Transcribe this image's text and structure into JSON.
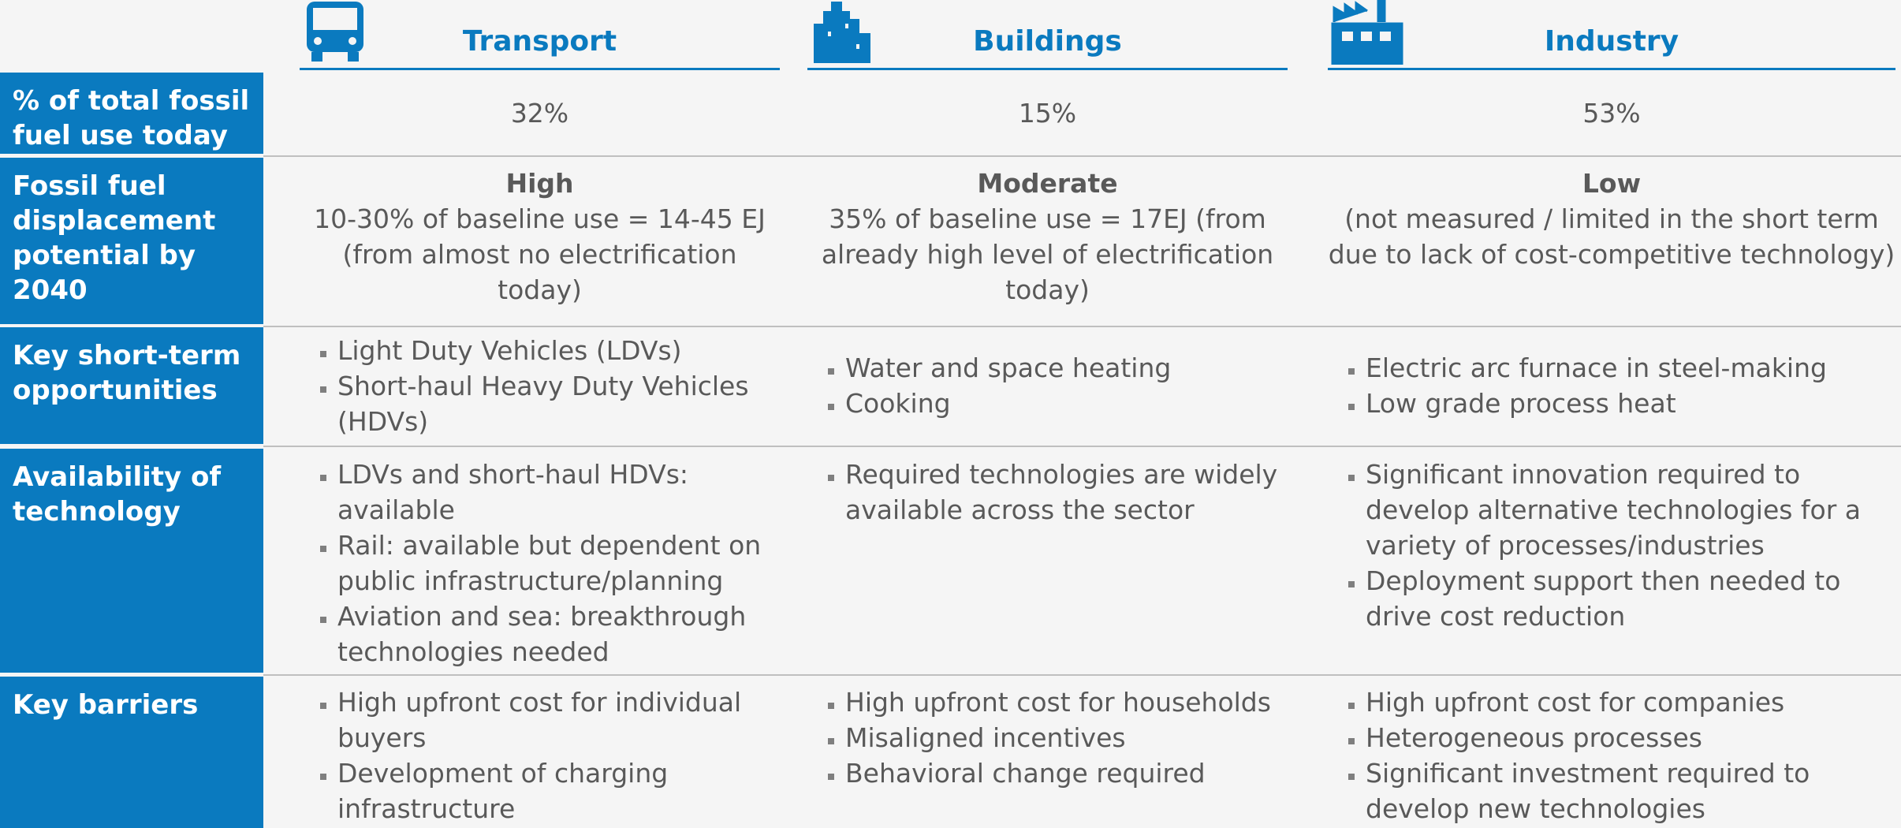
{
  "columns": [
    "Transport",
    "Buildings",
    "Industry"
  ],
  "rows": [
    {
      "header": "% of total fossil fuel use today",
      "cells": [
        "32%",
        "15%",
        "53%"
      ]
    },
    {
      "header": "Fossil fuel displacement potential by 2040",
      "cells": [
        {
          "title": "High",
          "text": "10-30% of baseline use = 14-45 EJ (from almost no electrification today)"
        },
        {
          "title": "Moderate",
          "text": "35% of baseline use = 17EJ (from already high level of electrification today)"
        },
        {
          "title": "Low",
          "text": "(not measured / limited in the short term due to lack of cost-competitive technology)"
        }
      ]
    },
    {
      "header": "Key short-term opportunities",
      "cells": [
        [
          "Light Duty Vehicles (LDVs)",
          "Short-haul Heavy Duty Vehicles (HDVs)"
        ],
        [
          "Water and space heating",
          "Cooking"
        ],
        [
          "Electric arc furnace in steel-making",
          "Low grade process heat"
        ]
      ]
    },
    {
      "header": "Availability of technology",
      "cells": [
        [
          "LDVs and short-haul HDVs: available",
          "Rail: available but dependent on public infrastructure/planning",
          "Aviation and sea: breakthrough technologies needed"
        ],
        [
          "Required technologies are widely available across the sector"
        ],
        [
          "Significant innovation required to develop alternative technologies for a variety of processes/industries",
          "Deployment support then needed to drive cost reduction"
        ]
      ]
    },
    {
      "header": "Key barriers",
      "cells": [
        [
          "High upfront cost for individual buyers",
          "Development of charging infrastructure"
        ],
        [
          "High upfront cost for households",
          "Misaligned incentives",
          "Behavioral change required"
        ],
        [
          "High upfront cost for companies",
          "Heterogeneous processes",
          "Significant investment required to develop new technologies"
        ]
      ]
    }
  ]
}
